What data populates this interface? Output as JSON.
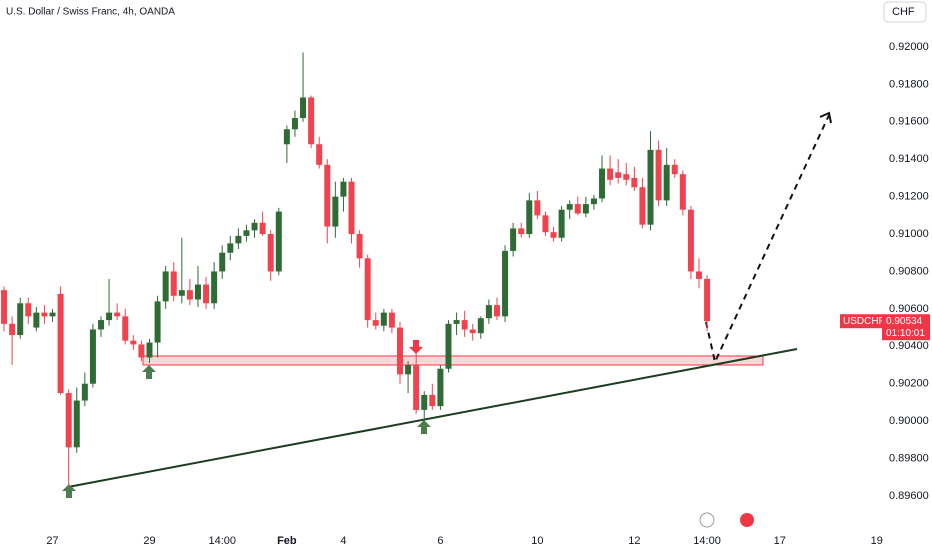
{
  "chart_data": {
    "type": "candlestick",
    "title": "U.S. Dollar / Swiss Franc, 4h, OANDA",
    "currency_button": "CHF",
    "symbol": "USDCHF",
    "last_price_label": "0.90534",
    "countdown": "01:10:01",
    "up_color": "#2e6b35",
    "down_color": "#f0434f",
    "open": [
      0.907,
      0.9052,
      0.9046,
      0.9063,
      0.905,
      0.9058,
      0.9056,
      0.9068,
      0.9015,
      0.8986,
      0.9011,
      0.902,
      0.9049,
      0.9054,
      0.9058,
      0.9056,
      0.9043,
      0.9041,
      0.9034,
      0.9042,
      0.9064,
      0.908,
      0.9067,
      0.907,
      0.9065,
      0.9073,
      0.9063,
      0.908,
      0.909,
      0.9095,
      0.9099,
      0.9102,
      0.9106,
      0.91,
      0.908,
      0.9148,
      0.9156,
      0.9162,
      0.9173,
      0.9148,
      0.9137,
      0.9104,
      0.912,
      0.9128,
      0.91,
      0.9087,
      0.9054,
      0.9051,
      0.9058,
      0.905,
      0.9025,
      0.903,
      0.9006,
      0.9014,
      0.9008,
      0.9028,
      0.9052,
      0.9054,
      0.9049,
      0.9047,
      0.9055,
      0.9062,
      0.9056,
      0.9091,
      0.9103,
      0.91,
      0.9118,
      0.911,
      0.9101,
      0.9098,
      0.9113,
      0.9116,
      0.9111,
      0.9116,
      0.9119,
      0.9135,
      0.9133,
      0.9132,
      0.913,
      0.9125,
      0.9105,
      0.9145,
      0.9118,
      0.9137,
      0.9132,
      0.9113,
      0.908,
      0.9076
    ],
    "high": [
      0.9072,
      0.9056,
      0.9066,
      0.9066,
      0.9061,
      0.9062,
      0.906,
      0.9072,
      0.9017,
      0.9018,
      0.9026,
      0.9052,
      0.9056,
      0.9076,
      0.9063,
      0.906,
      0.9046,
      0.9043,
      0.9044,
      0.9067,
      0.9083,
      0.9085,
      0.9098,
      0.9076,
      0.9083,
      0.9077,
      0.9085,
      0.9094,
      0.9099,
      0.9103,
      0.9105,
      0.9108,
      0.9112,
      0.9102,
      0.9114,
      0.9158,
      0.9166,
      0.9197,
      0.9174,
      0.9152,
      0.914,
      0.9128,
      0.913,
      0.913,
      0.9102,
      0.9089,
      0.9058,
      0.906,
      0.906,
      0.9053,
      0.9032,
      0.9036,
      0.9016,
      0.902,
      0.903,
      0.9054,
      0.9058,
      0.9059,
      0.9052,
      0.9056,
      0.9065,
      0.9066,
      0.9094,
      0.9106,
      0.9106,
      0.9122,
      0.9123,
      0.9112,
      0.9104,
      0.9115,
      0.9118,
      0.912,
      0.912,
      0.9121,
      0.9142,
      0.9142,
      0.914,
      0.9138,
      0.9136,
      0.913,
      0.9155,
      0.915,
      0.9146,
      0.914,
      0.9134,
      0.9115,
      0.9087,
      0.9078
    ],
    "low": [
      0.9048,
      0.903,
      0.9044,
      0.9052,
      0.9048,
      0.9052,
      0.9053,
      0.9014,
      0.8965,
      0.8983,
      0.9008,
      0.9018,
      0.9045,
      0.9051,
      0.9054,
      0.9041,
      0.9038,
      0.9032,
      0.9031,
      0.9034,
      0.906,
      0.9064,
      0.9063,
      0.9062,
      0.9061,
      0.906,
      0.906,
      0.9076,
      0.9086,
      0.9092,
      0.9096,
      0.9098,
      0.9099,
      0.9075,
      0.9078,
      0.9138,
      0.9152,
      0.916,
      0.9146,
      0.9135,
      0.9095,
      0.9098,
      0.9112,
      0.9095,
      0.9082,
      0.905,
      0.9049,
      0.9048,
      0.9047,
      0.902,
      0.9015,
      0.9004,
      0.9,
      0.9006,
      0.9006,
      0.9026,
      0.9046,
      0.9045,
      0.9043,
      0.9044,
      0.9052,
      0.9054,
      0.9053,
      0.9088,
      0.9098,
      0.9098,
      0.9108,
      0.9099,
      0.9096,
      0.9096,
      0.9108,
      0.911,
      0.9109,
      0.9113,
      0.9117,
      0.9126,
      0.9127,
      0.9126,
      0.9123,
      0.9103,
      0.9102,
      0.9115,
      0.9115,
      0.913,
      0.911,
      0.9076,
      0.9071,
      0.9048
    ],
    "close": [
      0.9052,
      0.9046,
      0.9063,
      0.9056,
      0.9058,
      0.9056,
      0.9058,
      0.9015,
      0.8986,
      0.9011,
      0.902,
      0.9049,
      0.9054,
      0.9058,
      0.9056,
      0.9043,
      0.9041,
      0.9034,
      0.9042,
      0.9064,
      0.908,
      0.9067,
      0.907,
      0.9065,
      0.9073,
      0.9063,
      0.908,
      0.909,
      0.9095,
      0.9099,
      0.9102,
      0.9106,
      0.91,
      0.908,
      0.9112,
      0.9156,
      0.9162,
      0.9173,
      0.9148,
      0.9137,
      0.9104,
      0.912,
      0.9128,
      0.91,
      0.9087,
      0.9054,
      0.9051,
      0.9058,
      0.905,
      0.9025,
      0.903,
      0.9006,
      0.9014,
      0.9008,
      0.9028,
      0.9052,
      0.9054,
      0.9049,
      0.9047,
      0.9055,
      0.9062,
      0.9056,
      0.9091,
      0.9103,
      0.91,
      0.9118,
      0.911,
      0.9101,
      0.9098,
      0.9113,
      0.9116,
      0.9111,
      0.9116,
      0.9119,
      0.9135,
      0.9129,
      0.913,
      0.9129,
      0.9125,
      0.9105,
      0.9145,
      0.9118,
      0.9137,
      0.9132,
      0.9113,
      0.908,
      0.9076,
      0.90534
    ],
    "xlim": [
      -0.5,
      108.4
    ],
    "xticks": [
      {
        "value": 6,
        "label": "27"
      },
      {
        "value": 18,
        "label": "29"
      },
      {
        "value": 27,
        "label": "14:00"
      },
      {
        "value": 35,
        "label": "Feb",
        "bold": true
      },
      {
        "value": 42,
        "label": "4"
      },
      {
        "value": 54,
        "label": "6"
      },
      {
        "value": 66,
        "label": "10"
      },
      {
        "value": 78,
        "label": "12"
      },
      {
        "value": 87,
        "label": "14:00"
      },
      {
        "value": 96,
        "label": "17"
      },
      {
        "value": 108,
        "label": "19"
      }
    ],
    "ylim": [
      0.89418,
      0.92251
    ],
    "yticks": [
      {
        "value": 0.92,
        "label": "0.92000"
      },
      {
        "value": 0.918,
        "label": "0.91800"
      },
      {
        "value": 0.916,
        "label": "0.91600"
      },
      {
        "value": 0.914,
        "label": "0.91400"
      },
      {
        "value": 0.912,
        "label": "0.91200"
      },
      {
        "value": 0.91,
        "label": "0.91000"
      },
      {
        "value": 0.908,
        "label": "0.90800"
      },
      {
        "value": 0.906,
        "label": "0.90600"
      },
      {
        "value": 0.904,
        "label": "0.90400"
      },
      {
        "value": 0.902,
        "label": "0.90200"
      },
      {
        "value": 0.9,
        "label": "0.90000"
      },
      {
        "value": 0.898,
        "label": "0.89800"
      },
      {
        "value": 0.896,
        "label": "0.89600"
      }
    ]
  }
}
